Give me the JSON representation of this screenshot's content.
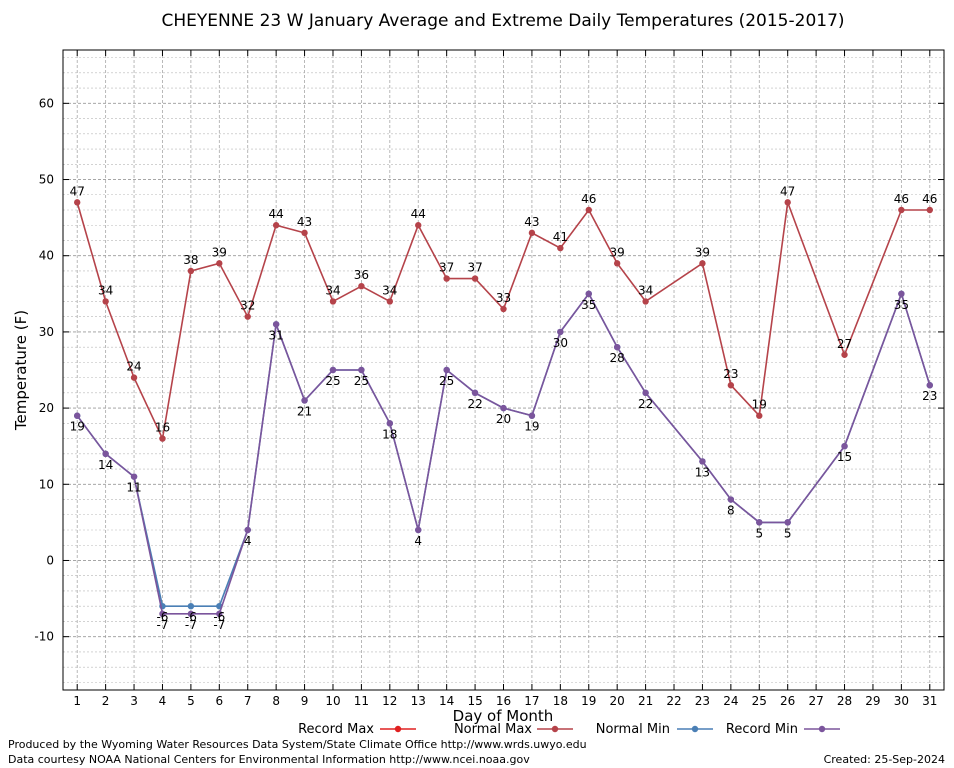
{
  "chart_data": {
    "type": "line",
    "title": "CHEYENNE 23 W January Average and Extreme Daily Temperatures (2015-2017)",
    "xlabel": "Day of Month",
    "ylabel": "Temperature (F)",
    "xlim": [
      0.5,
      31.5
    ],
    "ylim": [
      -17,
      67
    ],
    "x_ticks": [
      1,
      2,
      3,
      4,
      5,
      6,
      7,
      8,
      9,
      10,
      11,
      12,
      13,
      14,
      15,
      16,
      17,
      18,
      19,
      20,
      21,
      22,
      23,
      24,
      25,
      26,
      27,
      28,
      29,
      30,
      31
    ],
    "y_ticks": [
      -10,
      0,
      10,
      20,
      30,
      40,
      50,
      60
    ],
    "grid": true,
    "legend_position": "bottom",
    "series": [
      {
        "name": "Record Max",
        "color": "#e02020",
        "x": [],
        "values": [],
        "labels": []
      },
      {
        "name": "Normal Max",
        "color": "#b5434a",
        "x": [
          1,
          2,
          3,
          4,
          5,
          6,
          7,
          8,
          9,
          10,
          11,
          12,
          13,
          14,
          15,
          16,
          17,
          18,
          19,
          20,
          21,
          23,
          24,
          25,
          26,
          28,
          30,
          31
        ],
        "values": [
          47,
          34,
          24,
          16,
          38,
          39,
          32,
          44,
          43,
          34,
          36,
          34,
          44,
          37,
          37,
          33,
          43,
          41,
          46,
          39,
          34,
          39,
          23,
          19,
          47,
          27,
          46,
          46
        ],
        "labels": [
          "47",
          "34",
          "24",
          "16",
          "38",
          "39",
          "32",
          "44",
          "43",
          "34",
          "36",
          "34",
          "44",
          "37",
          "37",
          "33",
          "43",
          "41",
          "46",
          "39",
          "34",
          "39",
          "23",
          "19",
          "47",
          "27",
          "46",
          "46"
        ]
      },
      {
        "name": "Normal Min",
        "color": "#4a7fb5",
        "x": [
          1,
          2,
          3,
          4,
          5,
          6,
          7,
          8,
          9,
          10,
          11,
          12,
          13,
          14,
          15,
          16,
          17,
          18,
          19,
          20,
          21,
          23,
          24,
          25,
          26,
          28,
          30,
          31
        ],
        "values": [
          19,
          14,
          11,
          -6,
          -6,
          -6,
          4,
          31,
          21,
          25,
          25,
          18,
          4,
          25,
          22,
          20,
          19,
          30,
          35,
          28,
          22,
          13,
          8,
          5,
          5,
          15,
          35,
          23
        ],
        "labels": [
          "-6",
          "-6",
          "-6"
        ]
      },
      {
        "name": "Record Min",
        "color": "#7b559c",
        "x": [
          1,
          2,
          3,
          4,
          5,
          6,
          7,
          8,
          9,
          10,
          11,
          12,
          13,
          14,
          15,
          16,
          17,
          18,
          19,
          20,
          21,
          23,
          24,
          25,
          26,
          28,
          30,
          31
        ],
        "values": [
          19,
          14,
          11,
          -7,
          -7,
          -7,
          4,
          31,
          21,
          25,
          25,
          18,
          4,
          25,
          22,
          20,
          19,
          30,
          35,
          28,
          22,
          13,
          8,
          5,
          5,
          15,
          35,
          23
        ],
        "labels": [
          "19",
          "14",
          "11",
          "-7",
          "-7",
          "-7",
          "4",
          "31",
          "21",
          "25",
          "25",
          "18",
          "4",
          "25",
          "22",
          "20",
          "19",
          "30",
          "35",
          "28",
          "22",
          "13",
          "8",
          "5",
          "5",
          "15",
          "35",
          "23"
        ]
      }
    ]
  },
  "footer": {
    "produced_by": "Produced by the Wyoming Water Resources Data System/State Climate Office http://www.wrds.uwyo.edu",
    "data_courtesy": "Data courtesy NOAA National Centers for Environmental Information http://www.ncei.noaa.gov",
    "created": "Created:  25-Sep-2024"
  }
}
